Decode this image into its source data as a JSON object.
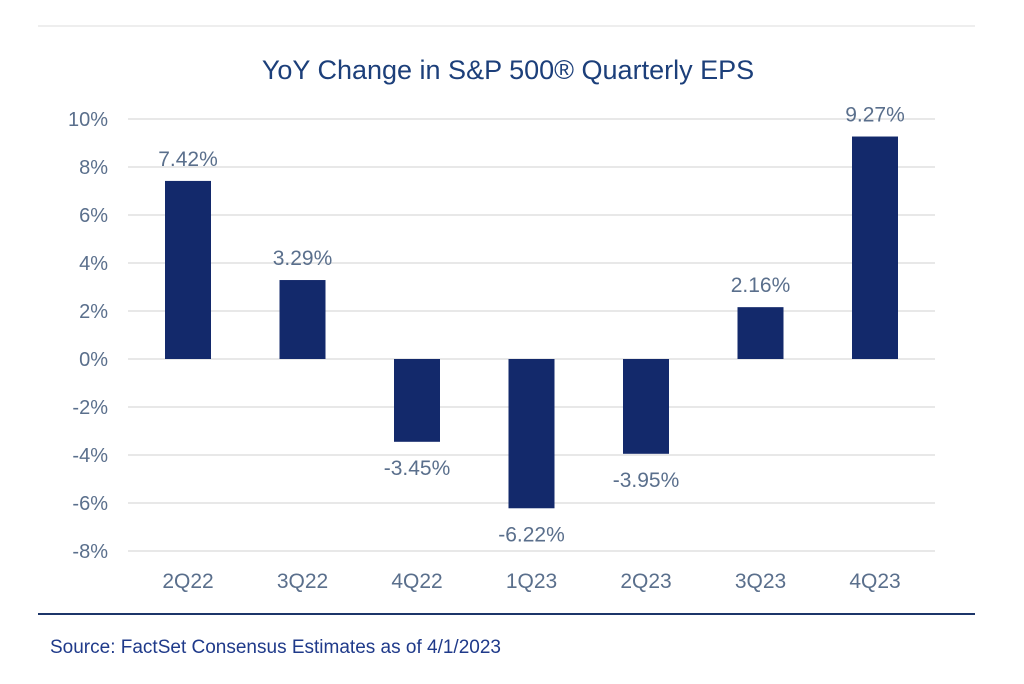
{
  "chart_data": {
    "type": "bar",
    "title": "YoY Change in S&P 500® Quarterly EPS",
    "xlabel": "",
    "ylabel": "",
    "categories": [
      "2Q22",
      "3Q22",
      "4Q22",
      "1Q23",
      "2Q23",
      "3Q23",
      "4Q23"
    ],
    "values": [
      7.42,
      3.29,
      -3.45,
      -6.22,
      -3.95,
      2.16,
      9.27
    ],
    "data_labels": [
      "7.42%",
      "3.29%",
      "-3.45%",
      "-6.22%",
      "-3.95%",
      "2.16%",
      "9.27%"
    ],
    "ylim": [
      -8,
      10
    ],
    "yticks": [
      10,
      8,
      6,
      4,
      2,
      0,
      -2,
      -4,
      -6,
      -8
    ],
    "ytick_labels": [
      "10%",
      "8%",
      "6%",
      "4%",
      "2%",
      "0%",
      "-2%",
      "-4%",
      "-6%",
      "-8%"
    ],
    "grid": true,
    "legend": "none",
    "colors": {
      "bar": "#13296b",
      "title": "#1c3f7a",
      "tick_label": "#5a6f8c",
      "data_label": "#5a6f8c",
      "grid": "#d9d9d9",
      "border": "#1c3569",
      "source": "#1f3a8a"
    }
  },
  "source": "Source: FactSet Consensus Estimates as of 4/1/2023"
}
